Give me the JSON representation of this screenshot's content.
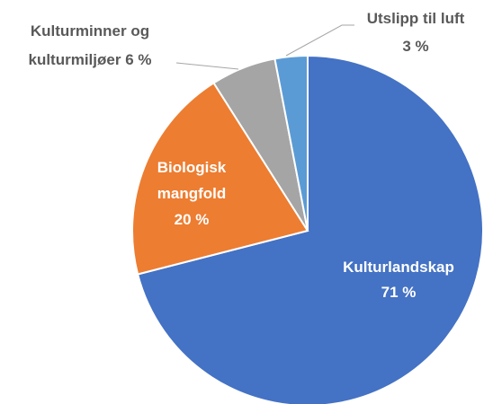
{
  "chart_data": {
    "type": "pie",
    "categories": [
      "Kulturlandskap",
      "Biologisk mangfold",
      "Kulturminner og kulturmiljøer",
      "Utslipp til luft"
    ],
    "values": [
      71,
      20,
      6,
      3
    ],
    "value_labels": [
      "71 %",
      "20 %",
      "6 %",
      "3 %"
    ],
    "colors": [
      "#4472c4",
      "#ed7d31",
      "#a5a5a5",
      "#5b9bd5"
    ]
  }
}
